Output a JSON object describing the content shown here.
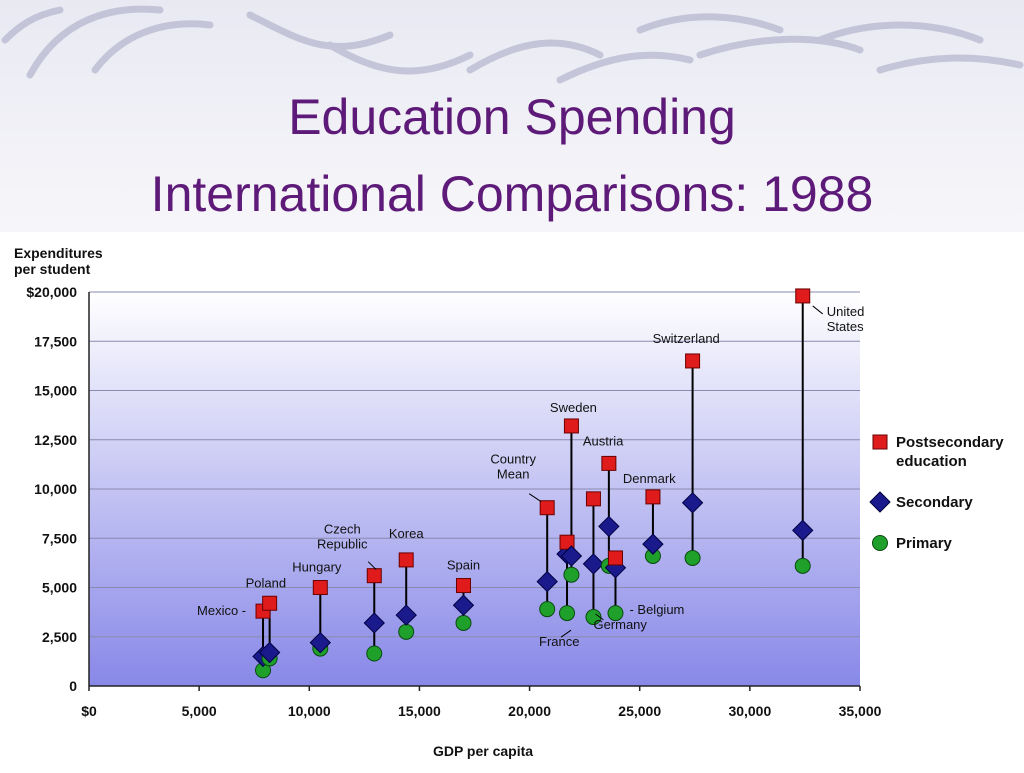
{
  "slide": {
    "title_line1": "Education Spending",
    "title_line2": "International Comparisons: 1988"
  },
  "colors": {
    "title": "#5e1a78",
    "postsecondary": "#e01b1b",
    "secondary": "#1a1a8c",
    "primary": "#1fa02a",
    "plot_top": "#ffffff",
    "plot_bottom": "#8888e8"
  },
  "chart_data": {
    "type": "scatter",
    "xlabel": "GDP per capita",
    "ylabel_line1": "Expenditures",
    "ylabel_line2": "per student",
    "xlim": [
      0,
      35000
    ],
    "ylim": [
      0,
      20000
    ],
    "x_ticks": [
      0,
      5000,
      10000,
      15000,
      20000,
      25000,
      30000,
      35000
    ],
    "x_tick_labels": [
      "$0",
      "5,000",
      "10,000",
      "15,000",
      "20,000",
      "25,000",
      "30,000",
      "35,000"
    ],
    "y_ticks": [
      0,
      2500,
      5000,
      7500,
      10000,
      12500,
      15000,
      17500,
      20000
    ],
    "y_tick_labels": [
      "0",
      "2,500",
      "5,000",
      "7,500",
      "10,000",
      "12,500",
      "15,000",
      "17,500",
      "$20,000"
    ],
    "grid": true,
    "legend_position": "right",
    "series": [
      {
        "name_line1": "Postsecondary",
        "name_line2": "education",
        "marker": "square"
      },
      {
        "name_line1": "Secondary",
        "name_line2": "",
        "marker": "diamond"
      },
      {
        "name_line1": "Primary",
        "name_line2": "",
        "marker": "circle"
      }
    ],
    "countries": [
      {
        "label": "Mexico -",
        "gdp": 7900,
        "postsecondary": 3800,
        "secondary": 1500,
        "primary": 800
      },
      {
        "label": "Poland",
        "gdp": 8200,
        "postsecondary": 4200,
        "secondary": 1700,
        "primary": 1400
      },
      {
        "label": "Hungary",
        "gdp": 10500,
        "postsecondary": 5000,
        "secondary": 2200,
        "primary": 1900
      },
      {
        "label": "Czech Republic",
        "label_line1": "Czech",
        "label_line2": "Republic",
        "gdp": 12950,
        "postsecondary": 5600,
        "secondary": 3200,
        "primary": 1650
      },
      {
        "label": "Korea",
        "gdp": 14400,
        "postsecondary": 6400,
        "secondary": 3600,
        "primary": 2750
      },
      {
        "label": "Spain",
        "gdp": 17000,
        "postsecondary": 5100,
        "secondary": 4100,
        "primary": 3200
      },
      {
        "label": "Country Mean",
        "label_line1": "Country",
        "label_line2": "Mean",
        "gdp": 20800,
        "postsecondary": 9050,
        "secondary": 5300,
        "primary": 3900
      },
      {
        "label": "France",
        "gdp": 21700,
        "postsecondary": 7300,
        "secondary": 6700,
        "primary": 3700
      },
      {
        "label": "Sweden",
        "gdp": 21900,
        "postsecondary": 13200,
        "secondary": 6600,
        "primary": 5650
      },
      {
        "label": "Germany",
        "gdp": 22900,
        "postsecondary": 9500,
        "secondary": 6200,
        "primary": 3500
      },
      {
        "label": "Austria",
        "gdp": 23600,
        "postsecondary": 11300,
        "secondary": 8100,
        "primary": 6100
      },
      {
        "label": "- Belgium",
        "gdp": 23900,
        "postsecondary": 6500,
        "secondary": 6000,
        "primary": 3700
      },
      {
        "label": "Denmark",
        "gdp": 25600,
        "postsecondary": 9600,
        "secondary": 7200,
        "primary": 6600
      },
      {
        "label": "Switzerland",
        "gdp": 27400,
        "postsecondary": 16500,
        "secondary": 9300,
        "primary": 6500
      },
      {
        "label": "United States",
        "label_line1": "United",
        "label_line2": "States",
        "gdp": 32400,
        "postsecondary": 19800,
        "secondary": 7900,
        "primary": 6100
      }
    ]
  }
}
